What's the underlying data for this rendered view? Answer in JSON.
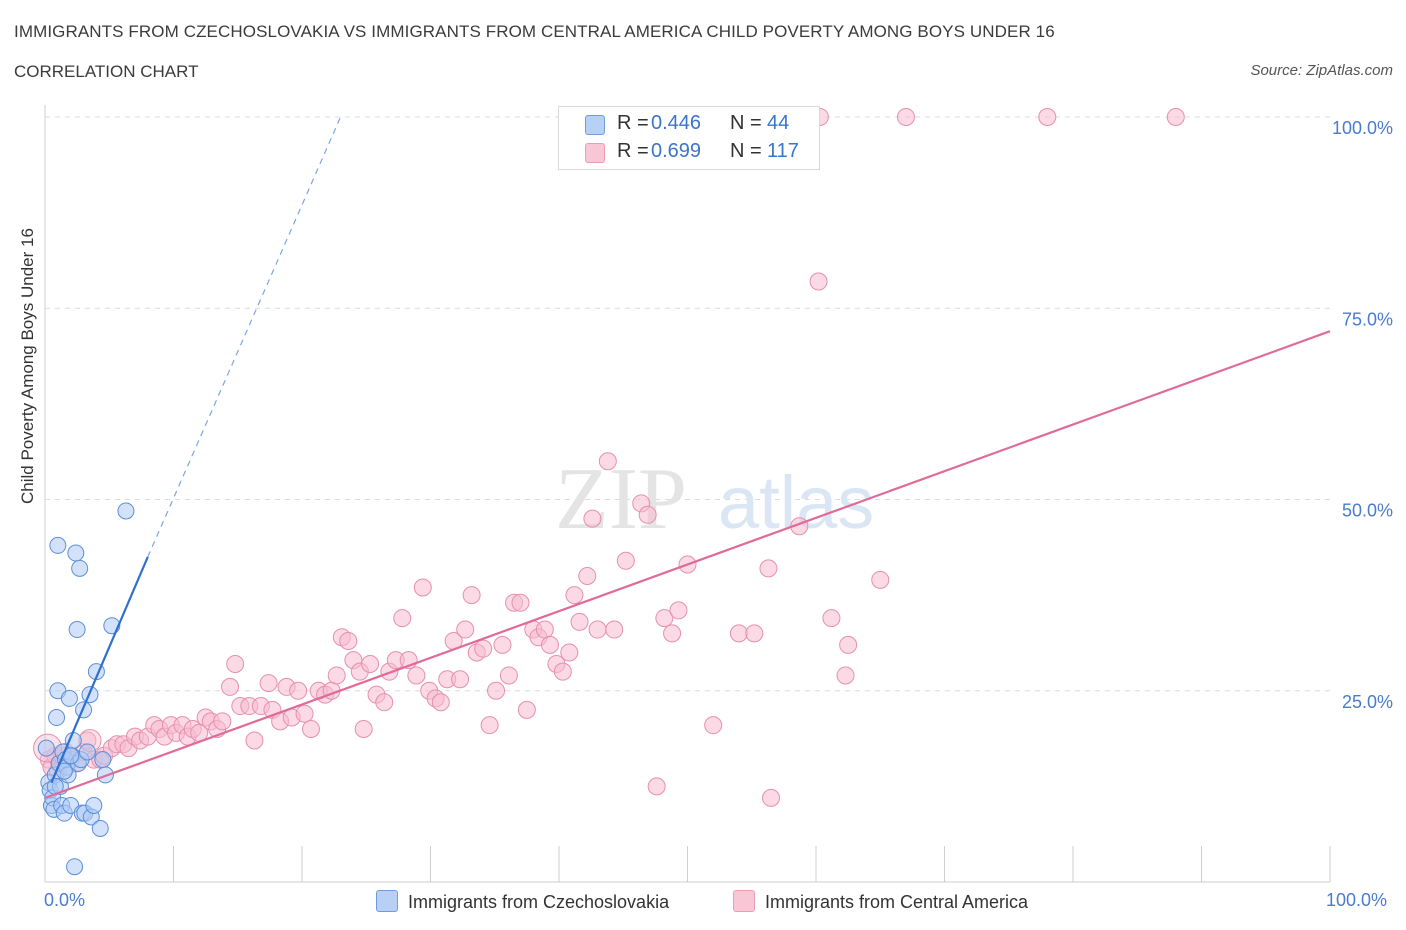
{
  "header": {
    "title": "IMMIGRANTS FROM CZECHOSLOVAKIA VS IMMIGRANTS FROM CENTRAL AMERICA CHILD POVERTY AMONG BOYS UNDER 16",
    "subtitle": "CORRELATION CHART",
    "source": "Source: ZipAtlas.com"
  },
  "watermark": {
    "zip": "ZIP",
    "atlas": "atlas"
  },
  "legend": {
    "rows": [
      {
        "r_label": "R =",
        "r_value": "0.446",
        "n_label": "N =",
        "n_value": "44"
      },
      {
        "r_label": "R =",
        "r_value": "0.699",
        "n_label": "N =",
        "n_value": "117"
      }
    ]
  },
  "colors": {
    "blue_fill": "#aecbf5",
    "blue_stroke": "#5b8fd8",
    "blue_line": "#2f6fd0",
    "pink_fill": "#f7bcd0",
    "pink_stroke": "#e690ad",
    "pink_line": "#e06b98",
    "axis_label": "#4a7bd0",
    "grid": "#dcdcdc"
  },
  "chart_data": {
    "type": "scatter",
    "title": "IMMIGRANTS FROM CZECHOSLOVAKIA VS IMMIGRANTS FROM CENTRAL AMERICA CHILD POVERTY AMONG BOYS UNDER 16",
    "xlabel": "",
    "ylabel": "Child Poverty Among Boys Under 16",
    "xlim": [
      0,
      100
    ],
    "ylim": [
      0,
      100
    ],
    "x_tick_labels": [
      "0.0%",
      "100.0%"
    ],
    "y_tick_labels": [
      "25.0%",
      "50.0%",
      "75.0%",
      "100.0%"
    ],
    "y_ticks": [
      25,
      50,
      75,
      100
    ],
    "grid": true,
    "legend_position": "bottom",
    "series": [
      {
        "name": "Immigrants from Czechoslovakia",
        "color": "blue",
        "points": [
          [
            0.1,
            17.5
          ],
          [
            0.3,
            13
          ],
          [
            0.4,
            12
          ],
          [
            0.5,
            10
          ],
          [
            0.6,
            11
          ],
          [
            0.7,
            9.5
          ],
          [
            0.8,
            14
          ],
          [
            0.9,
            21.5
          ],
          [
            1.0,
            25
          ],
          [
            1.0,
            44
          ],
          [
            1.1,
            15.5
          ],
          [
            1.2,
            12.5
          ],
          [
            1.3,
            10
          ],
          [
            1.4,
            17
          ],
          [
            1.5,
            9
          ],
          [
            1.6,
            16
          ],
          [
            1.7,
            15
          ],
          [
            1.8,
            14
          ],
          [
            1.9,
            24
          ],
          [
            2.0,
            10
          ],
          [
            2.1,
            16.5
          ],
          [
            2.2,
            18.5
          ],
          [
            2.3,
            2
          ],
          [
            2.4,
            43
          ],
          [
            2.5,
            33
          ],
          [
            2.6,
            15.5
          ],
          [
            2.7,
            41
          ],
          [
            2.8,
            16
          ],
          [
            2.9,
            9
          ],
          [
            3.0,
            22.5
          ],
          [
            3.1,
            9
          ],
          [
            3.3,
            17
          ],
          [
            3.5,
            24.5
          ],
          [
            3.6,
            8.5
          ],
          [
            3.8,
            10
          ],
          [
            4.0,
            27.5
          ],
          [
            4.3,
            7
          ],
          [
            4.5,
            16
          ],
          [
            4.7,
            14
          ],
          [
            5.2,
            33.5
          ],
          [
            6.3,
            48.5
          ],
          [
            0.8,
            12.5
          ],
          [
            1.5,
            14.5
          ],
          [
            2.0,
            16.5
          ]
        ],
        "trendline": {
          "x": [
            0.5,
            8.0
          ],
          "y": [
            13,
            42.5
          ]
        },
        "trendline_extension": {
          "x": [
            8.0,
            23.0
          ],
          "y": [
            42.5,
            100
          ]
        }
      },
      {
        "name": "Immigrants from Central America",
        "color": "pink",
        "points": [
          [
            0.3,
            16
          ],
          [
            0.5,
            15
          ],
          [
            0.8,
            16.5
          ],
          [
            1.0,
            14.5
          ],
          [
            1.3,
            16.5
          ],
          [
            1.6,
            17
          ],
          [
            2.0,
            16
          ],
          [
            2.5,
            15.5
          ],
          [
            3.0,
            17
          ],
          [
            3.3,
            18.5
          ],
          [
            3.8,
            16
          ],
          [
            4.3,
            16
          ],
          [
            4.6,
            16.5
          ],
          [
            5.2,
            17.5
          ],
          [
            5.6,
            18
          ],
          [
            6.1,
            18
          ],
          [
            6.5,
            17.5
          ],
          [
            7.0,
            19
          ],
          [
            7.4,
            18.5
          ],
          [
            8.0,
            19
          ],
          [
            8.5,
            20.5
          ],
          [
            8.9,
            20
          ],
          [
            9.3,
            19
          ],
          [
            9.8,
            20.5
          ],
          [
            10.2,
            19.5
          ],
          [
            10.7,
            20.5
          ],
          [
            11.1,
            19
          ],
          [
            11.5,
            20
          ],
          [
            12.0,
            19.5
          ],
          [
            12.5,
            21.5
          ],
          [
            12.9,
            21
          ],
          [
            13.4,
            20
          ],
          [
            13.8,
            21
          ],
          [
            14.4,
            25.5
          ],
          [
            14.8,
            28.5
          ],
          [
            15.2,
            23
          ],
          [
            15.9,
            23
          ],
          [
            16.3,
            18.5
          ],
          [
            16.8,
            23
          ],
          [
            17.4,
            26
          ],
          [
            17.7,
            22.5
          ],
          [
            18.3,
            21
          ],
          [
            18.8,
            25.5
          ],
          [
            19.2,
            21.5
          ],
          [
            19.7,
            25
          ],
          [
            20.2,
            22
          ],
          [
            20.7,
            20
          ],
          [
            21.3,
            25
          ],
          [
            21.8,
            24.5
          ],
          [
            22.3,
            25
          ],
          [
            22.7,
            27
          ],
          [
            23.1,
            32
          ],
          [
            23.6,
            31.5
          ],
          [
            24.0,
            29
          ],
          [
            24.5,
            27.5
          ],
          [
            24.8,
            20
          ],
          [
            25.3,
            28.5
          ],
          [
            25.8,
            24.5
          ],
          [
            26.4,
            23.5
          ],
          [
            26.8,
            27.5
          ],
          [
            27.3,
            29
          ],
          [
            27.8,
            34.5
          ],
          [
            28.3,
            29
          ],
          [
            28.9,
            27
          ],
          [
            29.4,
            38.5
          ],
          [
            29.9,
            25
          ],
          [
            30.4,
            24
          ],
          [
            30.8,
            23.5
          ],
          [
            31.3,
            26.5
          ],
          [
            31.8,
            31.5
          ],
          [
            32.3,
            26.5
          ],
          [
            32.7,
            33
          ],
          [
            33.2,
            37.5
          ],
          [
            33.6,
            30
          ],
          [
            34.1,
            30.5
          ],
          [
            34.6,
            20.5
          ],
          [
            35.1,
            25
          ],
          [
            35.6,
            31
          ],
          [
            36.1,
            27
          ],
          [
            36.5,
            36.5
          ],
          [
            37.0,
            36.5
          ],
          [
            37.5,
            22.5
          ],
          [
            38.0,
            33
          ],
          [
            38.4,
            32
          ],
          [
            38.9,
            33
          ],
          [
            39.3,
            31
          ],
          [
            39.8,
            28.5
          ],
          [
            40.3,
            27.5
          ],
          [
            40.8,
            30
          ],
          [
            41.2,
            37.5
          ],
          [
            41.6,
            34
          ],
          [
            42.2,
            40
          ],
          [
            42.6,
            47.5
          ],
          [
            43.0,
            33
          ],
          [
            43.8,
            55
          ],
          [
            44.3,
            33
          ],
          [
            45.2,
            42
          ],
          [
            46.4,
            49.5
          ],
          [
            46.9,
            48
          ],
          [
            47.6,
            12.5
          ],
          [
            48.2,
            34.5
          ],
          [
            48.8,
            32.5
          ],
          [
            49.3,
            35.5
          ],
          [
            50.0,
            41.5
          ],
          [
            52.0,
            20.5
          ],
          [
            54.0,
            32.5
          ],
          [
            55.2,
            32.5
          ],
          [
            56.3,
            41
          ],
          [
            56.5,
            11
          ],
          [
            58.7,
            46.5
          ],
          [
            60.2,
            78.5
          ],
          [
            60.3,
            100
          ],
          [
            61.2,
            34.5
          ],
          [
            62.3,
            27
          ],
          [
            62.5,
            31
          ],
          [
            65.0,
            39.5
          ],
          [
            67.0,
            100
          ]
        ],
        "trendline": {
          "x": [
            0,
            100
          ],
          "y": [
            11,
            72
          ]
        }
      }
    ],
    "extra_top_points_central_america": [
      [
        78.0,
        100
      ],
      [
        88.0,
        100
      ]
    ]
  },
  "bottom_legend": {
    "items": [
      {
        "label": "Immigrants from Czechoslovakia"
      },
      {
        "label": "Immigrants from Central America"
      }
    ]
  }
}
